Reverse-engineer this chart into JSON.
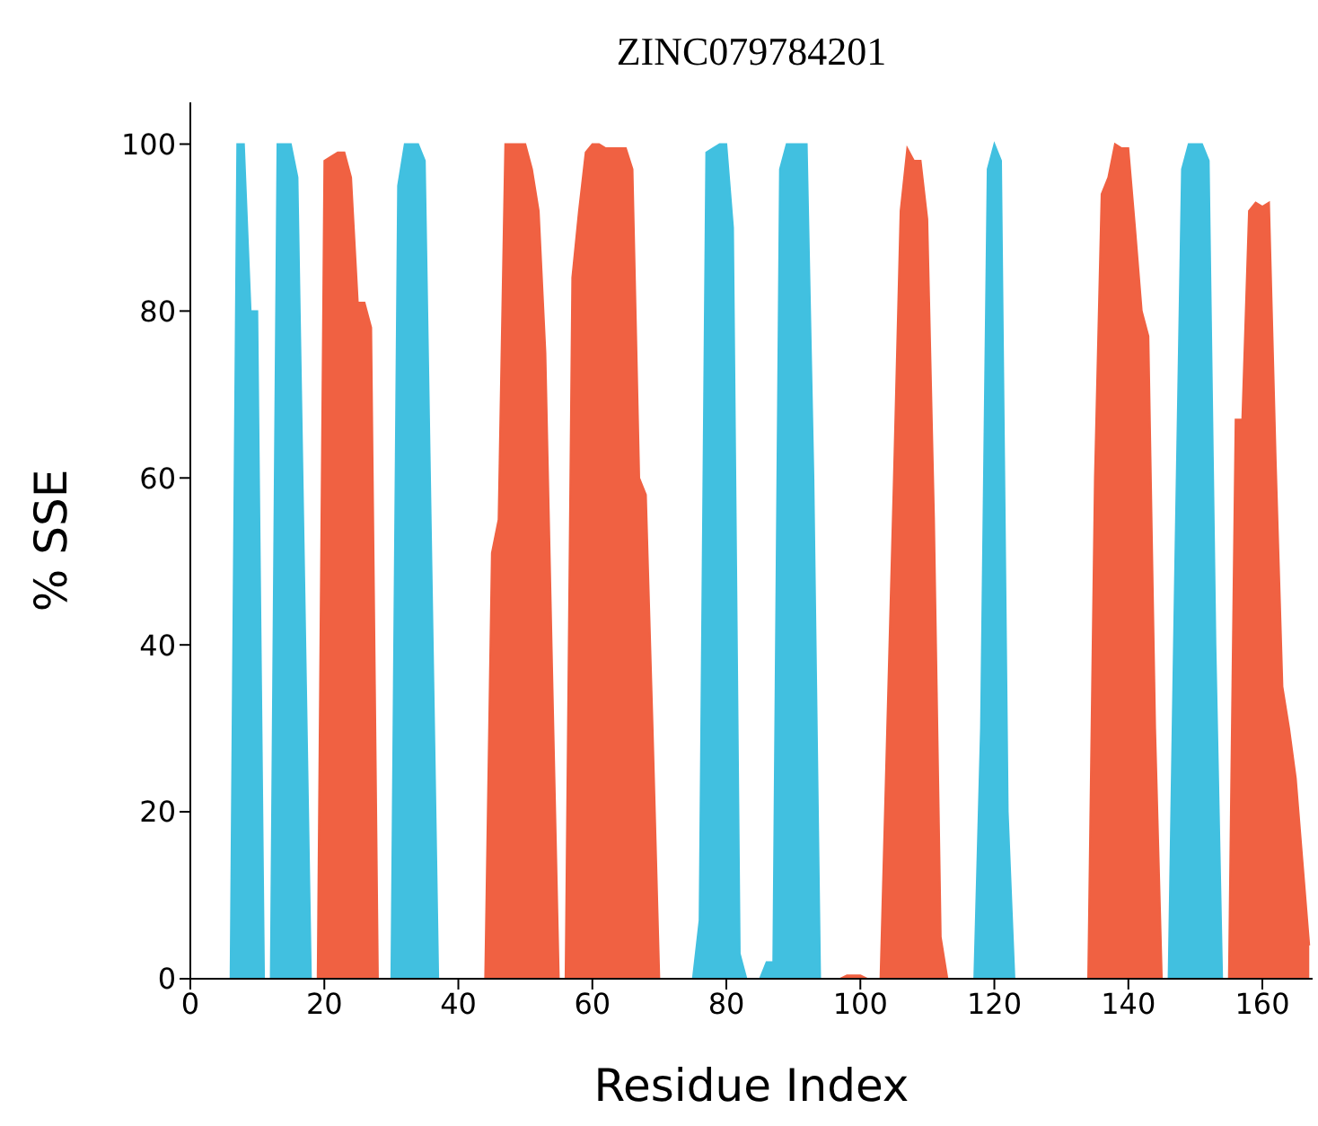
{
  "chart_data": {
    "type": "area",
    "title": "ZINC079784201",
    "xlabel": "Residue Index",
    "ylabel": "% SSE",
    "xlim": [
      0,
      167.5
    ],
    "xticks": [
      0,
      20,
      40,
      60,
      80,
      100,
      120,
      140,
      160
    ],
    "ylim": [
      0,
      105
    ],
    "yticks": [
      0,
      20,
      40,
      60,
      80,
      100
    ],
    "grid": false,
    "legend": false,
    "series": [
      {
        "color": "#41c0e0",
        "x": [
          6,
          7,
          8,
          9,
          10,
          11,
          12,
          13,
          14,
          15,
          16,
          17,
          18,
          30,
          31,
          32,
          33,
          34,
          35,
          36,
          37,
          75,
          76,
          77,
          78,
          79,
          80,
          81,
          82,
          83,
          85,
          86,
          87,
          88,
          89,
          90,
          91,
          92,
          93,
          94,
          117,
          118,
          119,
          120,
          121,
          122,
          123,
          146,
          147,
          148,
          149,
          150,
          151,
          152,
          153,
          154
        ],
        "values": [
          0,
          100,
          100,
          80,
          80,
          0,
          0,
          100,
          100,
          100,
          96,
          48,
          0,
          0,
          95,
          100,
          100,
          100,
          98,
          49,
          0,
          0,
          7,
          99,
          99.5,
          100,
          100,
          90,
          3,
          0,
          0,
          2,
          2,
          97,
          100,
          100,
          100,
          100,
          60,
          0,
          0,
          30,
          97,
          100,
          98,
          20,
          0,
          0,
          50,
          97,
          100,
          100,
          100,
          98,
          40,
          0
        ]
      },
      {
        "color": "#f06142",
        "x": [
          19,
          20,
          21,
          22,
          23,
          24,
          25,
          26,
          27,
          28,
          44,
          45,
          46,
          47,
          48,
          49,
          50,
          51,
          52,
          53,
          54,
          55,
          56,
          57,
          58,
          59,
          60,
          61,
          62,
          63,
          64,
          65,
          66,
          67,
          68,
          69,
          70,
          97,
          98,
          99,
          100,
          101,
          103,
          104,
          105,
          106,
          107,
          108,
          109,
          110,
          111,
          112,
          113,
          134,
          135,
          136,
          137,
          138,
          139,
          140,
          141,
          142,
          143,
          144,
          145,
          155,
          156,
          157,
          158,
          159,
          160,
          161,
          162,
          163,
          164,
          165,
          166,
          167
        ],
        "values": [
          0,
          98,
          98.5,
          99,
          99,
          96,
          81,
          81,
          78,
          0,
          0,
          51,
          55,
          100,
          100,
          100,
          100,
          97,
          92,
          75,
          37,
          0,
          0,
          84,
          92,
          99,
          100,
          100,
          99.5,
          99.5,
          99.5,
          99.5,
          97,
          60,
          58,
          30,
          0,
          0,
          0.4,
          0.4,
          0.4,
          0,
          0,
          30,
          60,
          92,
          99.5,
          98,
          98,
          91,
          55,
          5,
          0,
          0,
          60,
          94,
          96,
          100,
          99.5,
          99.5,
          90,
          80,
          77,
          30,
          0,
          0,
          67,
          67,
          92,
          93,
          92.5,
          93,
          62,
          35,
          30,
          24,
          14,
          4
        ]
      }
    ]
  }
}
